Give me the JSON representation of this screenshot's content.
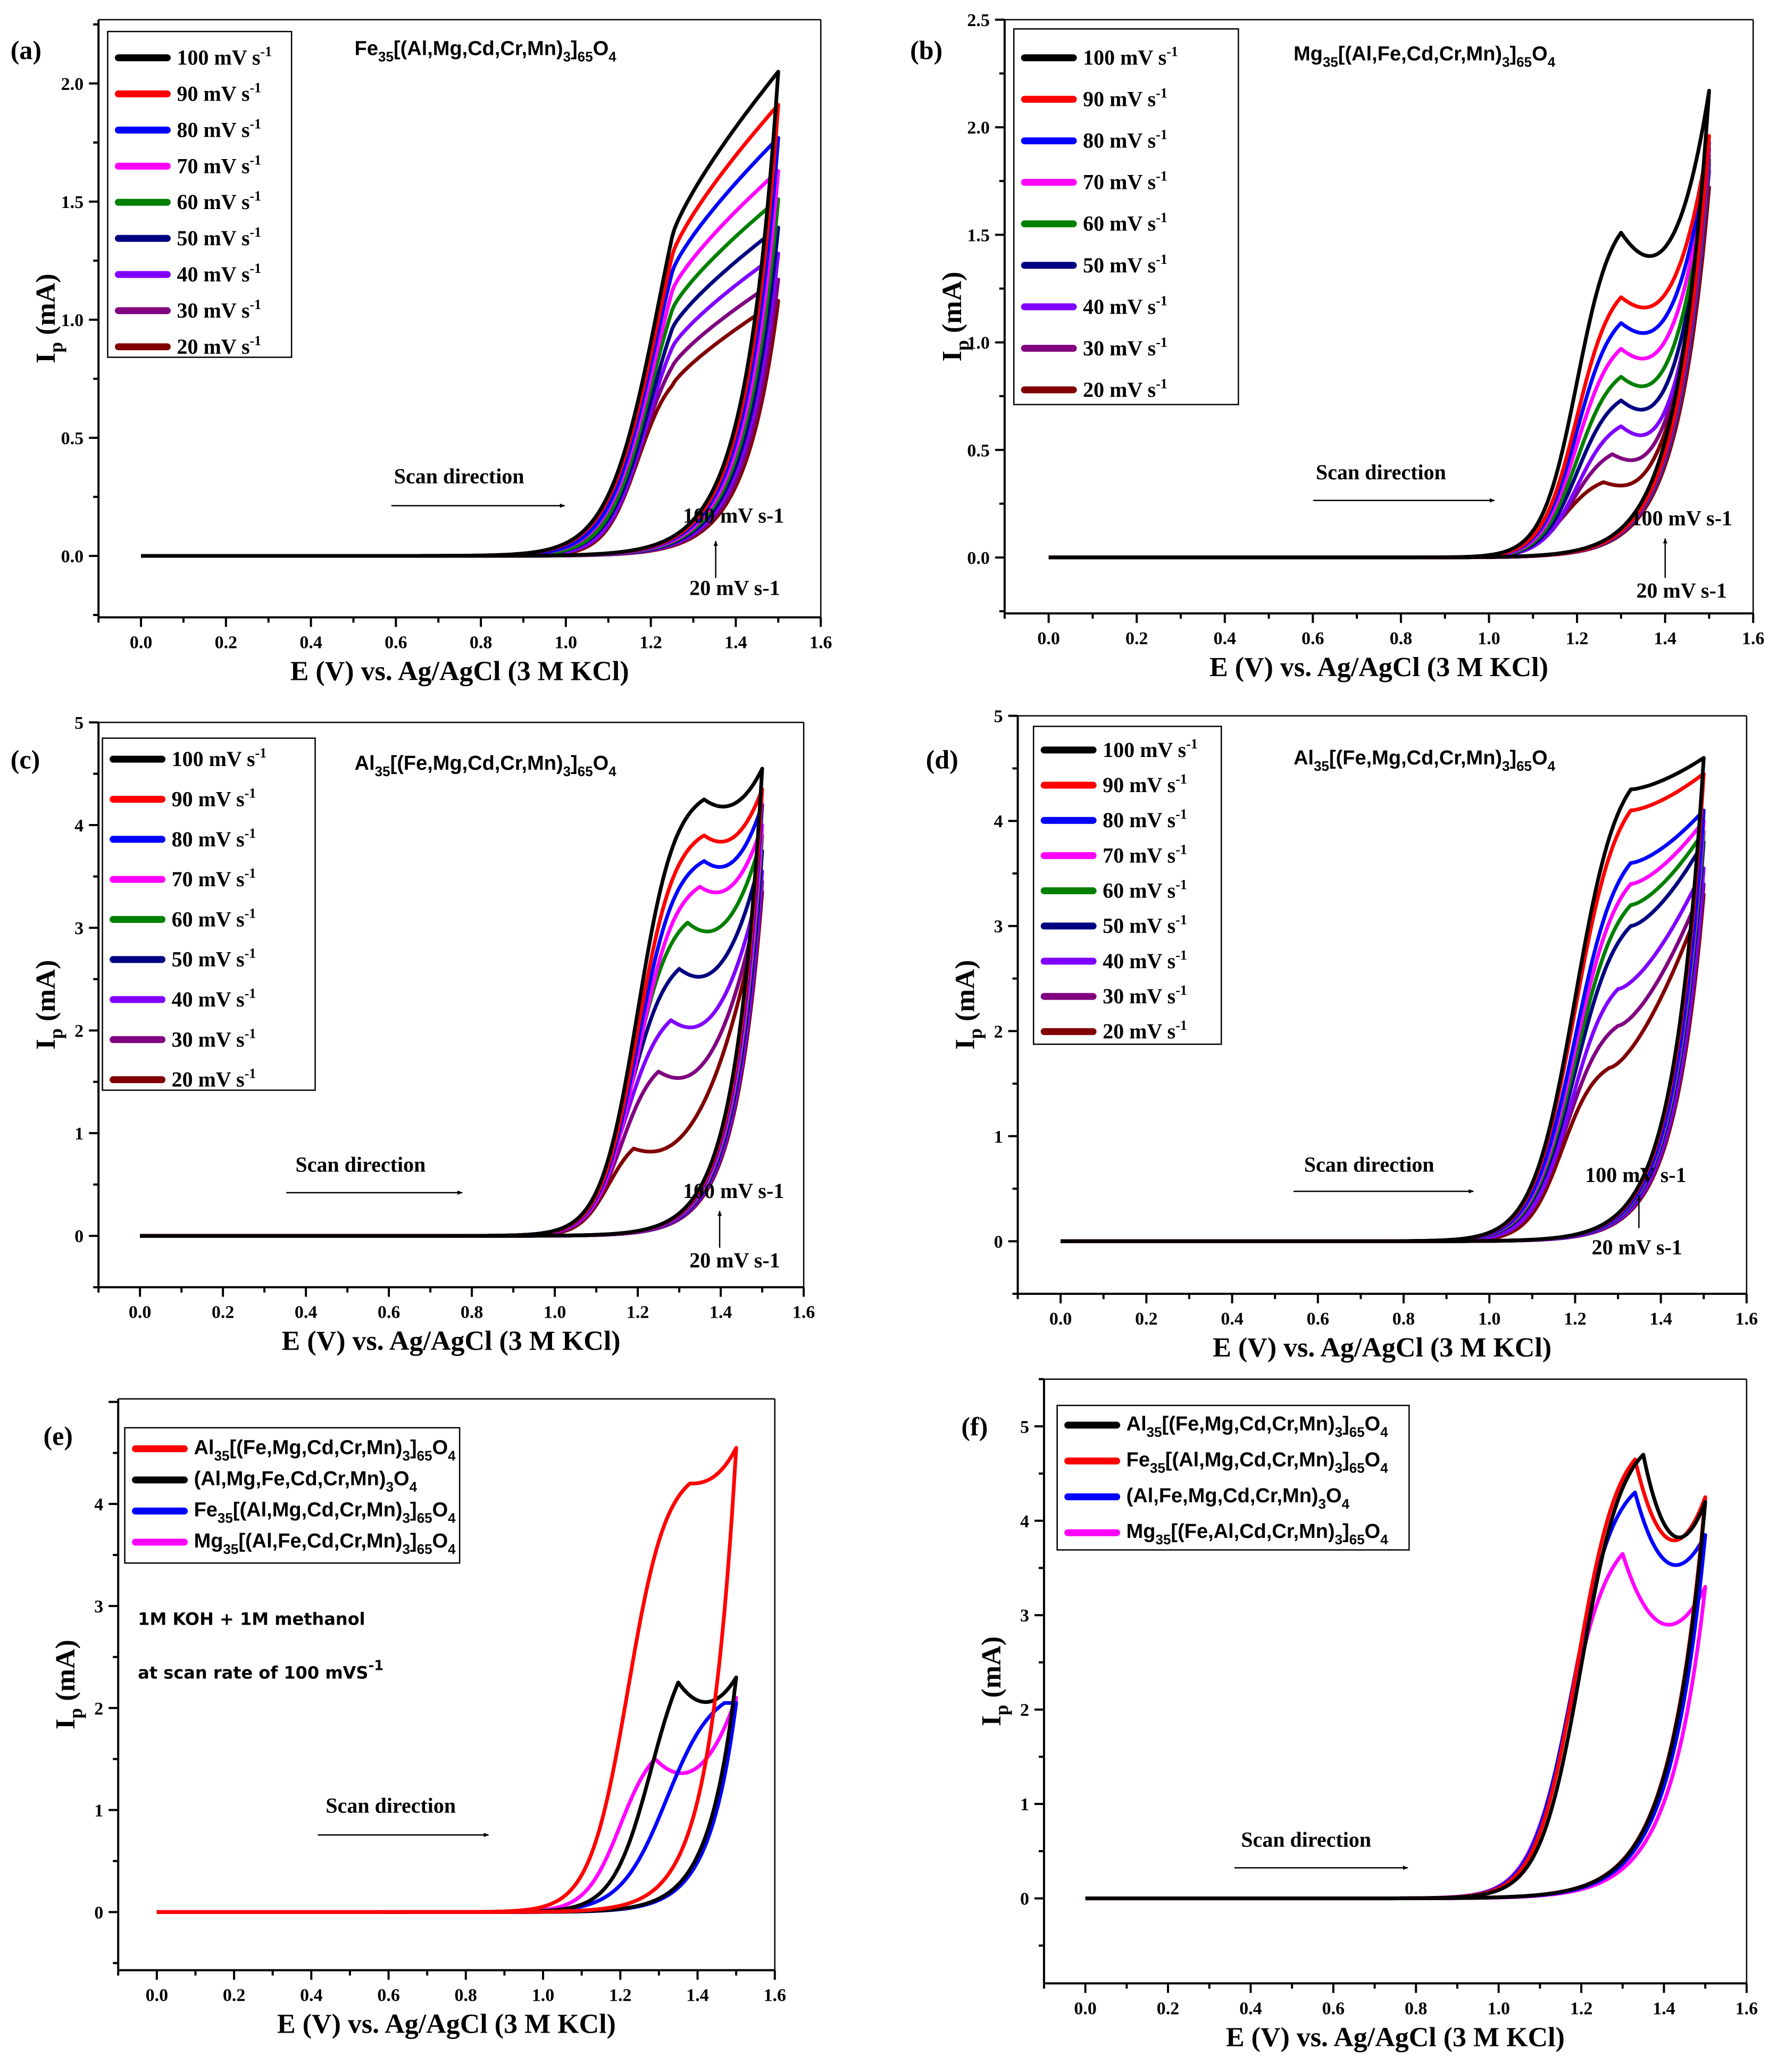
{
  "chart_data": [
    {
      "panel": "(a)",
      "type": "line",
      "title": "Fe35[(Al,Mg,Cd,Cr,Mn)3]65O4",
      "xlabel": "E (V) vs. Ag/AgCl (3 M KCl)",
      "ylabel": {
        "main": "I",
        "sub": "p",
        "rest": " (mA)"
      },
      "xlim": [
        -0.1,
        1.6
      ],
      "ylim": [
        -0.26,
        2.27
      ],
      "xticks": [
        "0.0",
        "0.2",
        "0.4",
        "0.6",
        "0.8",
        "1.0",
        "1.2",
        "1.4",
        "1.6"
      ],
      "yticks": [
        "0.0",
        "0.5",
        "1.0",
        "1.5",
        "2.0"
      ],
      "ytick_step": 0.5,
      "rise_exponent": 0.8,
      "return_decay": 0.077,
      "annotations": {
        "scan_direction": "Scan direction",
        "high_rate": "100 mV s-1",
        "low_rate": "20 mV s-1"
      },
      "series": [
        {
          "name": "100 mV s",
          "sup": "-1",
          "color": "#000000",
          "E_half": 1.22,
          "width": 0.06,
          "E_peak": 1.25,
          "I_peak": 1.35,
          "I_end": 2.05,
          "dip": 0
        },
        {
          "name": "90 mV s",
          "sup": "-1",
          "color": "#ff0000",
          "E_half": 1.22,
          "width": 0.06,
          "E_peak": 1.25,
          "I_peak": 1.27,
          "I_end": 1.91,
          "dip": 0
        },
        {
          "name": "80 mV s",
          "sup": "-1",
          "color": "#0000ff",
          "E_half": 1.21,
          "width": 0.055,
          "E_peak": 1.25,
          "I_peak": 1.2,
          "I_end": 1.77,
          "dip": 0
        },
        {
          "name": "70 mV s",
          "sup": "-1",
          "color": "#ff00ff",
          "E_half": 1.21,
          "width": 0.055,
          "E_peak": 1.25,
          "I_peak": 1.12,
          "I_end": 1.63,
          "dip": 0
        },
        {
          "name": "60 mV s",
          "sup": "-1",
          "color": "#008000",
          "E_half": 1.2,
          "width": 0.05,
          "E_peak": 1.25,
          "I_peak": 1.04,
          "I_end": 1.51,
          "dip": 0
        },
        {
          "name": "50 mV s",
          "sup": "-1",
          "color": "#000080",
          "E_half": 1.2,
          "width": 0.05,
          "E_peak": 1.25,
          "I_peak": 0.96,
          "I_end": 1.39,
          "dip": 0
        },
        {
          "name": "40 mV s",
          "sup": "-1",
          "color": "#8000ff",
          "E_half": 1.19,
          "width": 0.045,
          "E_peak": 1.25,
          "I_peak": 0.88,
          "I_end": 1.28,
          "dip": 0
        },
        {
          "name": "30 mV s",
          "sup": "-1",
          "color": "#800080",
          "E_half": 1.18,
          "width": 0.045,
          "E_peak": 1.25,
          "I_peak": 0.8,
          "I_end": 1.17,
          "dip": 0
        },
        {
          "name": "20 mV s",
          "sup": "-1",
          "color": "#800000",
          "E_half": 1.17,
          "width": 0.04,
          "E_peak": 1.25,
          "I_peak": 0.72,
          "I_end": 1.08,
          "dip": 0
        }
      ]
    },
    {
      "panel": "(b)",
      "type": "line",
      "title": "Mg35[(Al,Fe,Cd,Cr,Mn)3]65O4",
      "xlabel": "E (V) vs. Ag/AgCl (3 M KCl)",
      "ylabel": {
        "main": "I",
        "sub": "p",
        "rest": " (mA)"
      },
      "xlim": [
        -0.1,
        1.6
      ],
      "ylim": [
        -0.26,
        2.5
      ],
      "xticks": [
        "0.0",
        "0.2",
        "0.4",
        "0.6",
        "0.8",
        "1.0",
        "1.2",
        "1.4",
        "1.6"
      ],
      "yticks": [
        "0.0",
        "0.5",
        "1.0",
        "1.5",
        "2.0",
        "2.5"
      ],
      "ytick_step": 0.5,
      "rise_exponent": 3,
      "return_decay": 0.072,
      "annotations": {
        "scan_direction": "Scan direction",
        "high_rate": "100 mV s-1",
        "low_rate": "20 mV s-1"
      },
      "series": [
        {
          "name": "100 mV s",
          "sup": "-1",
          "color": "#000000",
          "E_half": 1.2,
          "width": 0.04,
          "E_peak": 1.3,
          "I_peak": 1.51,
          "I_end": 2.17,
          "dip": 0.15
        },
        {
          "name": "90 mV s",
          "sup": "-1",
          "color": "#ff0000",
          "E_half": 1.2,
          "width": 0.04,
          "E_peak": 1.3,
          "I_peak": 1.21,
          "I_end": 1.96,
          "dip": 0.08
        },
        {
          "name": "80 mV s",
          "sup": "-1",
          "color": "#0000ff",
          "E_half": 1.2,
          "width": 0.04,
          "E_peak": 1.3,
          "I_peak": 1.09,
          "I_end": 1.93,
          "dip": 0.08
        },
        {
          "name": "70 mV s",
          "sup": "-1",
          "color": "#ff00ff",
          "E_half": 1.2,
          "width": 0.04,
          "E_peak": 1.3,
          "I_peak": 0.97,
          "I_end": 1.9,
          "dip": 0.08
        },
        {
          "name": "60 mV s",
          "sup": "-1",
          "color": "#008000",
          "E_half": 1.2,
          "width": 0.04,
          "E_peak": 1.3,
          "I_peak": 0.84,
          "I_end": 1.87,
          "dip": 0.08
        },
        {
          "name": "50 mV s",
          "sup": "-1",
          "color": "#000080",
          "E_half": 1.2,
          "width": 0.04,
          "E_peak": 1.3,
          "I_peak": 0.73,
          "I_end": 1.85,
          "dip": 0.08
        },
        {
          "name": "40 mV s",
          "sup": "-1",
          "color": "#8000ff",
          "E_half": 1.2,
          "width": 0.04,
          "E_peak": 1.3,
          "I_peak": 0.61,
          "I_end": 1.83,
          "dip": 0.08
        },
        {
          "name": "30 mV s",
          "sup": "-1",
          "color": "#800080",
          "E_half": 1.19,
          "width": 0.04,
          "E_peak": 1.28,
          "I_peak": 0.48,
          "I_end": 1.8,
          "dip": 0.06
        },
        {
          "name": "20 mV s",
          "sup": "-1",
          "color": "#800000",
          "E_half": 1.17,
          "width": 0.04,
          "E_peak": 1.26,
          "I_peak": 0.35,
          "I_end": 1.72,
          "dip": 0.04
        }
      ]
    },
    {
      "panel": "(c)",
      "type": "line",
      "title": "Al35[(Fe,Mg,Cd,Cr,Mn)3]65O4",
      "xlabel": "E (V) vs. Ag/AgCl (3 M KCl)",
      "ylabel": {
        "main": "I",
        "sub": "p",
        "rest": " (mA)"
      },
      "xlim": [
        -0.1,
        1.6
      ],
      "ylim": [
        -0.5,
        5
      ],
      "xticks": [
        "0.0",
        "0.2",
        "0.4",
        "0.6",
        "0.8",
        "1.0",
        "1.2",
        "1.4",
        "1.6"
      ],
      "yticks": [
        "0",
        "1",
        "2",
        "3",
        "4",
        "5"
      ],
      "ytick_step": 1,
      "rise_exponent": 2.5,
      "return_decay": 0.066,
      "annotations": {
        "scan_direction": "Scan direction",
        "high_rate": "100 mV s-1",
        "low_rate": "20 mV s-1"
      },
      "series": [
        {
          "name": "100 mV s",
          "sup": "-1",
          "color": "#000000",
          "E_half": 1.2,
          "width": 0.045,
          "E_peak": 1.36,
          "I_peak": 4.25,
          "I_end": 4.55,
          "dip": 0.1
        },
        {
          "name": "90 mV s",
          "sup": "-1",
          "color": "#ff0000",
          "E_half": 1.2,
          "width": 0.045,
          "E_peak": 1.36,
          "I_peak": 3.9,
          "I_end": 4.35,
          "dip": 0.1
        },
        {
          "name": "80 mV s",
          "sup": "-1",
          "color": "#0000ff",
          "E_half": 1.2,
          "width": 0.045,
          "E_peak": 1.36,
          "I_peak": 3.65,
          "I_end": 4.2,
          "dip": 0.1
        },
        {
          "name": "70 mV s",
          "sup": "-1",
          "color": "#ff00ff",
          "E_half": 1.2,
          "width": 0.045,
          "E_peak": 1.35,
          "I_peak": 3.4,
          "I_end": 4.0,
          "dip": 0.1
        },
        {
          "name": "60 mV s",
          "sup": "-1",
          "color": "#008000",
          "E_half": 1.19,
          "width": 0.045,
          "E_peak": 1.32,
          "I_peak": 3.05,
          "I_end": 3.9,
          "dip": 0.15
        },
        {
          "name": "50 mV s",
          "sup": "-1",
          "color": "#000080",
          "E_half": 1.18,
          "width": 0.045,
          "E_peak": 1.3,
          "I_peak": 2.6,
          "I_end": 3.75,
          "dip": 0.15
        },
        {
          "name": "40 mV s",
          "sup": "-1",
          "color": "#8000ff",
          "E_half": 1.17,
          "width": 0.045,
          "E_peak": 1.28,
          "I_peak": 2.1,
          "I_end": 3.55,
          "dip": 0.15
        },
        {
          "name": "30 mV s",
          "sup": "-1",
          "color": "#800080",
          "E_half": 1.16,
          "width": 0.04,
          "E_peak": 1.25,
          "I_peak": 1.6,
          "I_end": 3.45,
          "dip": 0.15
        },
        {
          "name": "20 mV s",
          "sup": "-1",
          "color": "#800000",
          "E_half": 1.13,
          "width": 0.035,
          "E_peak": 1.19,
          "I_peak": 0.85,
          "I_end": 3.35,
          "dip": 0.1
        }
      ]
    },
    {
      "panel": "(d)",
      "type": "line",
      "title": "Al35[(Fe,Mg,Cd,Cr,Mn)3]65O4",
      "xlabel": "E (V) vs. Ag/AgCl (3 M KCl)",
      "ylabel": {
        "main": "I",
        "sub": "p",
        "rest": " (mA)"
      },
      "xlim": [
        -0.1,
        1.6
      ],
      "ylim": [
        -0.5,
        5
      ],
      "xticks": [
        "0.0",
        "0.2",
        "0.4",
        "0.6",
        "0.8",
        "1.0",
        "1.2",
        "1.4",
        "1.6"
      ],
      "yticks": [
        "0",
        "1",
        "2",
        "3",
        "4",
        "5"
      ],
      "ytick_step": 1,
      "rise_exponent": 1.5,
      "return_decay": 0.07,
      "annotations": {
        "scan_direction": "Scan direction",
        "high_rate": "100 mV s-1",
        "low_rate": "20 mV s-1"
      },
      "series": [
        {
          "name": "100 mV s",
          "sup": "-1",
          "color": "#000000",
          "E_half": 1.2,
          "width": 0.05,
          "E_peak": 1.33,
          "I_peak": 4.3,
          "I_end": 4.6,
          "dip": 0
        },
        {
          "name": "90 mV s",
          "sup": "-1",
          "color": "#ff0000",
          "E_half": 1.2,
          "width": 0.05,
          "E_peak": 1.33,
          "I_peak": 4.1,
          "I_end": 4.45,
          "dip": 0
        },
        {
          "name": "80 mV s",
          "sup": "-1",
          "color": "#0000ff",
          "E_half": 1.2,
          "width": 0.05,
          "E_peak": 1.33,
          "I_peak": 3.6,
          "I_end": 4.1,
          "dip": 0
        },
        {
          "name": "70 mV s",
          "sup": "-1",
          "color": "#ff00ff",
          "E_half": 1.2,
          "width": 0.05,
          "E_peak": 1.33,
          "I_peak": 3.4,
          "I_end": 4.0,
          "dip": 0
        },
        {
          "name": "60 mV s",
          "sup": "-1",
          "color": "#008000",
          "E_half": 1.2,
          "width": 0.05,
          "E_peak": 1.33,
          "I_peak": 3.2,
          "I_end": 3.9,
          "dip": 0
        },
        {
          "name": "50 mV s",
          "sup": "-1",
          "color": "#000080",
          "E_half": 1.2,
          "width": 0.05,
          "E_peak": 1.33,
          "I_peak": 3.0,
          "I_end": 3.8,
          "dip": 0
        },
        {
          "name": "40 mV s",
          "sup": "-1",
          "color": "#8000ff",
          "E_half": 1.19,
          "width": 0.045,
          "E_peak": 1.3,
          "I_peak": 2.4,
          "I_end": 3.55,
          "dip": 0
        },
        {
          "name": "30 mV s",
          "sup": "-1",
          "color": "#800080",
          "E_half": 1.18,
          "width": 0.045,
          "E_peak": 1.3,
          "I_peak": 2.05,
          "I_end": 3.4,
          "dip": 0
        },
        {
          "name": "20 mV s",
          "sup": "-1",
          "color": "#800000",
          "E_half": 1.17,
          "width": 0.04,
          "E_peak": 1.28,
          "I_peak": 1.65,
          "I_end": 3.3,
          "dip": 0
        }
      ]
    },
    {
      "panel": "(e)",
      "type": "line",
      "title": "",
      "xlabel": "E (V) vs. Ag/AgCl (3 M KCl)",
      "ylabel": {
        "main": "I",
        "sub": "p",
        "rest": " (mA)"
      },
      "xlim": [
        -0.1,
        1.6
      ],
      "ylim": [
        -0.57,
        5.03
      ],
      "xticks": [
        "0.0",
        "0.2",
        "0.4",
        "0.6",
        "0.8",
        "1.0",
        "1.2",
        "1.4",
        "1.6"
      ],
      "yticks": [
        "0",
        "1",
        "2",
        "3",
        "4"
      ],
      "ytick_step": 1,
      "rise_exponent": 2.5,
      "return_decay": 0.07,
      "annotations": {
        "scan_direction": "Scan direction",
        "conditions_line1": "1M KOH + 1M methanol",
        "conditions_line2": "at scan rate of 100 mVS",
        "conditions_sup": "-1"
      },
      "series": [
        {
          "name": "Al35[(Fe,Mg,Cd,Cr,Mn)3]65O4",
          "color": "#ff0000",
          "E_half": 1.22,
          "width": 0.05,
          "E_peak": 1.38,
          "I_peak": 4.2,
          "I_end": 4.55,
          "dip": 0
        },
        {
          "name": "(Al,Mg,Fe,Cd,Cr,Mn)3O4",
          "color": "#000000",
          "E_half": 1.28,
          "width": 0.05,
          "E_peak": 1.35,
          "I_peak": 2.25,
          "I_end": 2.3,
          "dip": 0.2
        },
        {
          "name": "Fe35[(Al,Mg,Cd,Cr,Mn)3]65O4",
          "color": "#0000ff",
          "E_half": 1.32,
          "width": 0.06,
          "E_peak": 1.47,
          "I_peak": 2.05,
          "I_end": 2.05,
          "dip": 0
        },
        {
          "name": "Mg35[(Al,Fe,Cd,Cr,Mn)3]65O4",
          "color": "#ff00ff",
          "E_half": 1.2,
          "width": 0.045,
          "E_peak": 1.29,
          "I_peak": 1.5,
          "I_end": 2.1,
          "dip": 0.2
        }
      ]
    },
    {
      "panel": "(f)",
      "type": "line",
      "title": "",
      "xlabel": "E (V) vs. Ag/AgCl (3 M KCl)",
      "ylabel": {
        "main": "I",
        "sub": "p",
        "rest": " (mA)"
      },
      "xlim": [
        -0.1,
        1.6
      ],
      "ylim": [
        -0.9,
        5.5
      ],
      "xticks": [
        "0.0",
        "0.2",
        "0.4",
        "0.6",
        "0.8",
        "1.0",
        "1.2",
        "1.4",
        "1.6"
      ],
      "yticks": [
        "0",
        "1",
        "2",
        "3",
        "4",
        "5"
      ],
      "ytick_step": 1,
      "rise_exponent": 3,
      "return_decay": 0.085,
      "annotations": {
        "scan_direction": "Scan direction"
      },
      "series": [
        {
          "name": "Al35[(Fe,Mg,Cd,Cr,Mn)3]65O4",
          "color": "#000000",
          "E_half": 1.2,
          "width": 0.05,
          "E_peak": 1.35,
          "I_peak": 4.7,
          "I_end": 4.2,
          "dip": 0.8
        },
        {
          "name": "Fe35[(Al,Mg,Cd,Cr,Mn)3]65O4",
          "color": "#ff0000",
          "E_half": 1.19,
          "width": 0.05,
          "E_peak": 1.33,
          "I_peak": 4.65,
          "I_end": 4.25,
          "dip": 0.8
        },
        {
          "name": "(Al,Fe,Mg,Cd,Cr,Mn)3O4",
          "color": "#0000ff",
          "E_half": 1.18,
          "width": 0.05,
          "E_peak": 1.33,
          "I_peak": 4.3,
          "I_end": 3.85,
          "dip": 0.7
        },
        {
          "name": "Mg35[(Fe,Al,Cd,Cr,Mn)3]65O4",
          "color": "#ff00ff",
          "E_half": 1.17,
          "width": 0.05,
          "E_peak": 1.3,
          "I_peak": 3.65,
          "I_end": 3.3,
          "dip": 0.7
        }
      ]
    }
  ]
}
